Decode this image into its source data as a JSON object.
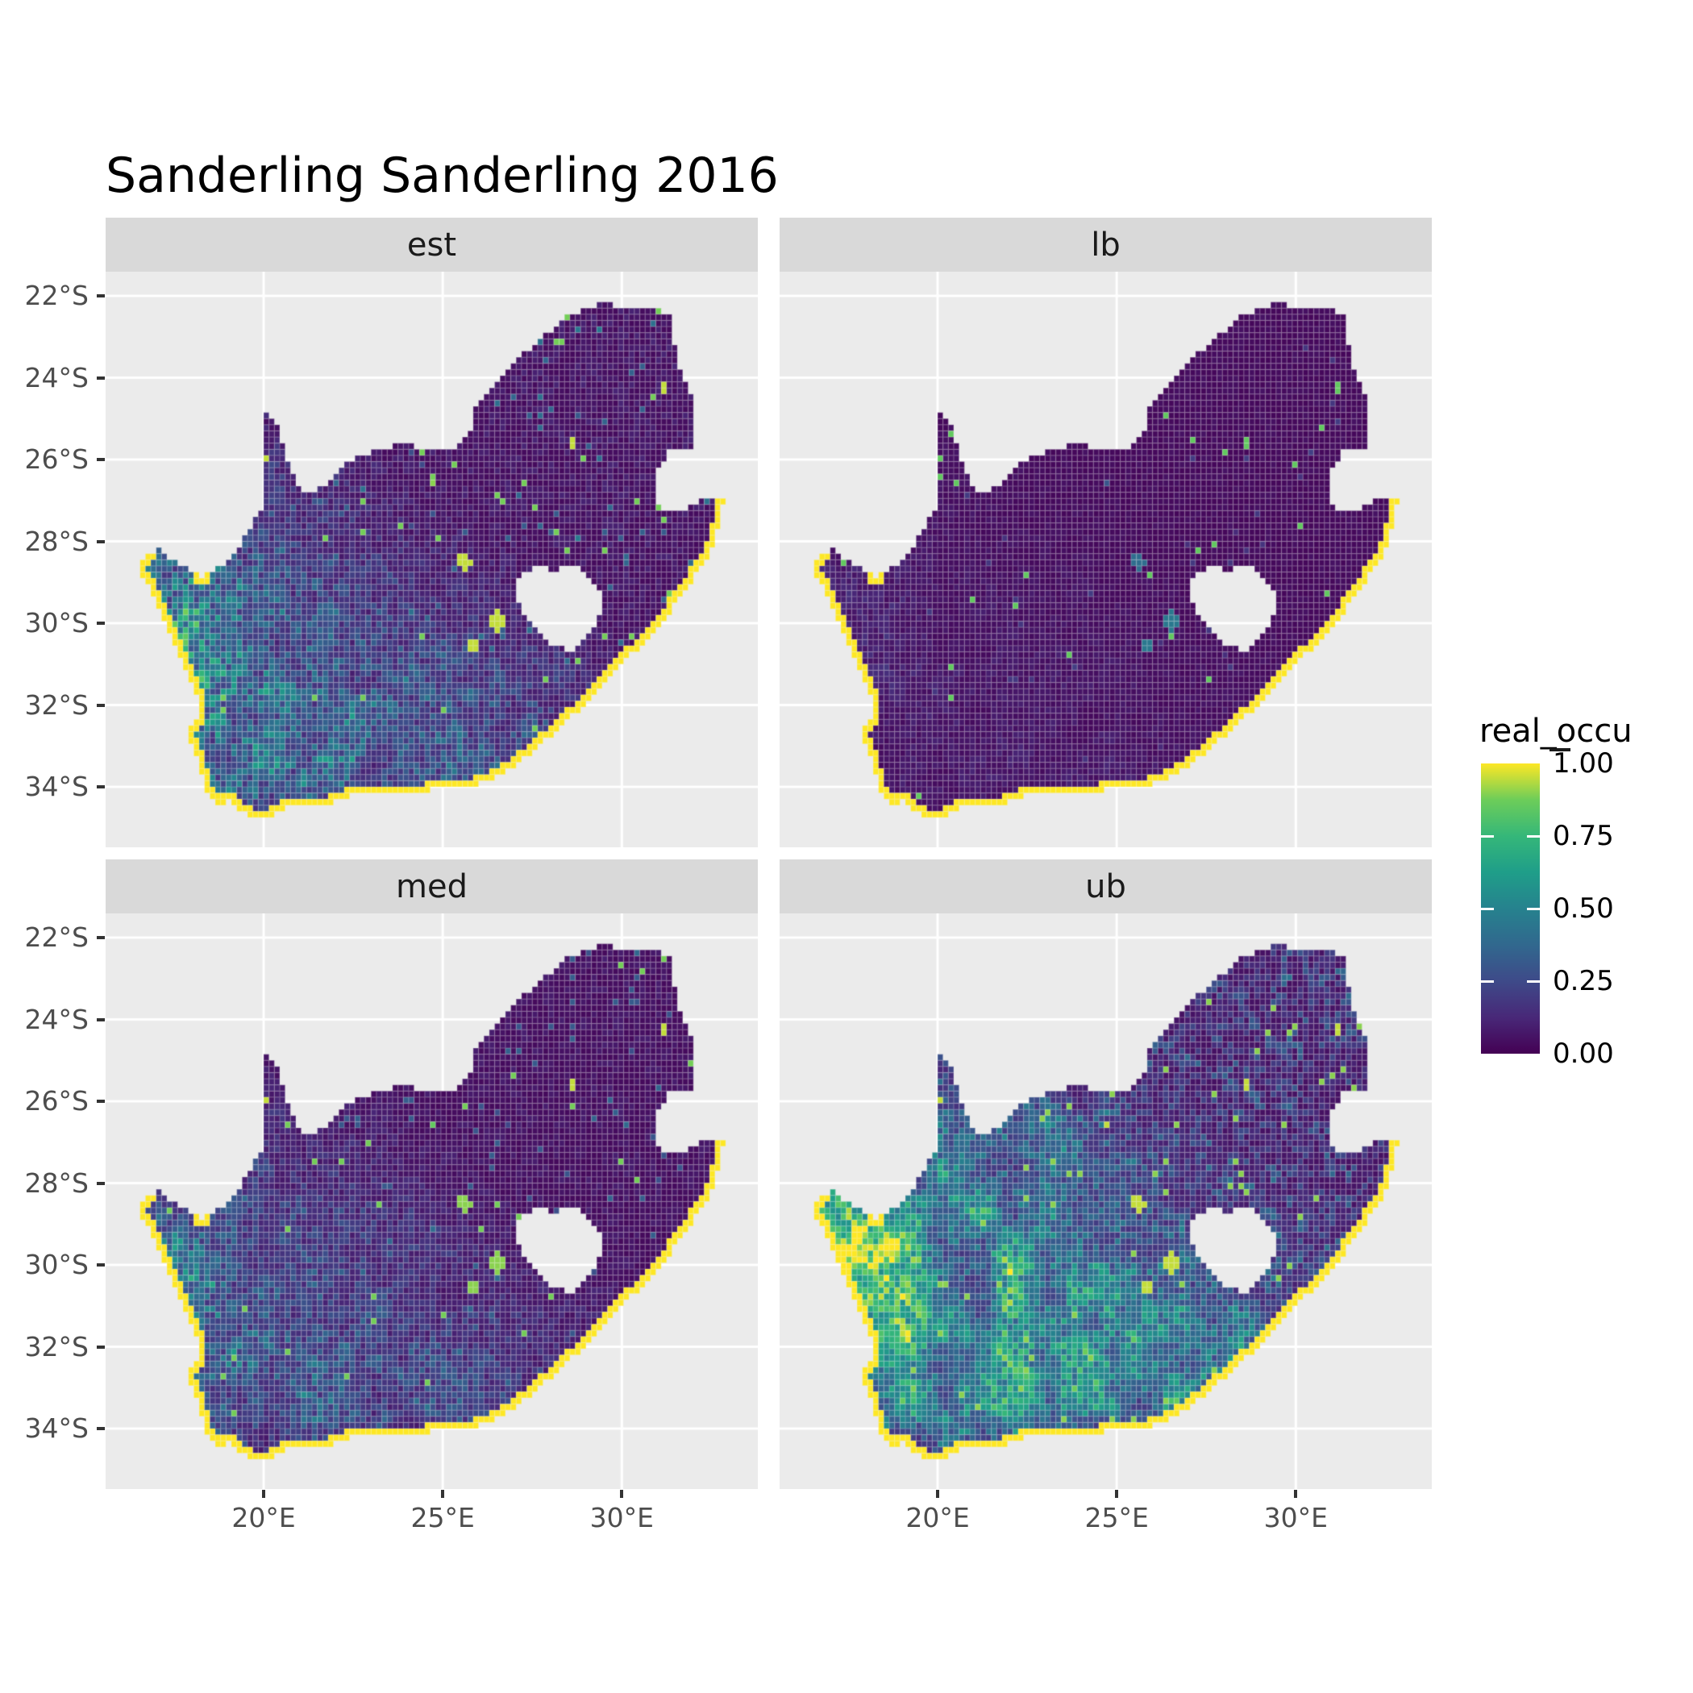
{
  "title": "Sanderling Sanderling 2016",
  "facets": [
    {
      "id": "est",
      "label": "est",
      "summary": "moderate occupancy (0.2-0.6) mottled over southwestern South Africa, near zero in the northeast, occupancy 1 along the coastline"
    },
    {
      "id": "lb",
      "label": "lb",
      "summary": "lower bound: near zero everywhere except coastline cells at 1 and a few isolated hotspots"
    },
    {
      "id": "med",
      "label": "med",
      "summary": "median: low occupancy with sparse teal speckle in the southwest, near zero northeast, coastline 1"
    },
    {
      "id": "ub",
      "label": "ub",
      "summary": "upper bound: high occupancy (0.5-1.0) across the southwest and west coast, low in the northeast, coastline 1"
    }
  ],
  "axes": {
    "y_tick_labels": [
      "22°S",
      "24°S",
      "26°S",
      "28°S",
      "30°S",
      "32°S",
      "34°S"
    ],
    "y_tick_values": [
      -22,
      -24,
      -26,
      -28,
      -30,
      -32,
      -34
    ],
    "x_tick_labels": [
      "20°E",
      "25°E",
      "30°E"
    ],
    "x_tick_values": [
      20,
      25,
      30
    ]
  },
  "legend": {
    "title": "real_occu",
    "labels": [
      "1.00",
      "0.75",
      "0.50",
      "0.25",
      "0.00"
    ],
    "breaks": [
      1.0,
      0.75,
      0.5,
      0.25,
      0.0
    ]
  },
  "colors": {
    "background": "#ffffff",
    "panel_bg": "#ebebeb",
    "strip_bg": "#d9d9d9",
    "grid": "#ffffff",
    "tick": "#333333",
    "axis_text": "#4d4d4d",
    "strip_text": "#1a1a1a",
    "title_text": "#000000",
    "viridis": [
      [
        0,
        "#440154"
      ],
      [
        0.125,
        "#482878"
      ],
      [
        0.25,
        "#3E4A89"
      ],
      [
        0.375,
        "#31688E"
      ],
      [
        0.5,
        "#26828E"
      ],
      [
        0.625,
        "#1F9E89"
      ],
      [
        0.75,
        "#35B779"
      ],
      [
        0.875,
        "#6DCD59"
      ],
      [
        1,
        "#FDE725"
      ]
    ]
  },
  "chart_data": {
    "type": "heatmap",
    "subtype": "faceted raster occupancy map",
    "region": "South Africa",
    "variable": "real_occu",
    "title": "Sanderling Sanderling 2016",
    "facet_labels": [
      "est",
      "lb",
      "med",
      "ub"
    ],
    "color_scale": {
      "name": "viridis",
      "limits": [
        0,
        1
      ],
      "breaks": [
        0,
        0.25,
        0.5,
        0.75,
        1
      ]
    },
    "lon_range": [
      15.6,
      33.8
    ],
    "lat_range": [
      -35.5,
      -21.4
    ],
    "grid": {
      "lon0": 16.4,
      "lat0": -22.0,
      "step": 0.15,
      "ncols": 111,
      "nrows": 87
    },
    "map": {
      "boundary": [
        [
          16.45,
          -28.6
        ],
        [
          17.05,
          -28.15
        ],
        [
          17.6,
          -28.55
        ],
        [
          18.3,
          -28.87
        ],
        [
          19.0,
          -28.5
        ],
        [
          19.4,
          -28.0
        ],
        [
          19.7,
          -27.6
        ],
        [
          19.99,
          -27.1
        ],
        [
          19.99,
          -24.76
        ],
        [
          20.35,
          -25.05
        ],
        [
          20.62,
          -25.8
        ],
        [
          20.72,
          -26.25
        ],
        [
          21.1,
          -26.87
        ],
        [
          21.7,
          -26.67
        ],
        [
          22.2,
          -26.15
        ],
        [
          22.9,
          -25.85
        ],
        [
          23.9,
          -25.62
        ],
        [
          24.75,
          -25.8
        ],
        [
          25.4,
          -25.72
        ],
        [
          25.75,
          -25.4
        ],
        [
          25.9,
          -24.75
        ],
        [
          26.4,
          -24.3
        ],
        [
          26.9,
          -23.65
        ],
        [
          27.6,
          -23.22
        ],
        [
          28.3,
          -22.57
        ],
        [
          29.35,
          -22.18
        ],
        [
          30.3,
          -22.3
        ],
        [
          31.3,
          -22.4
        ],
        [
          31.55,
          -23.6
        ],
        [
          31.95,
          -24.4
        ],
        [
          32.05,
          -25.1
        ],
        [
          32.02,
          -25.68
        ],
        [
          31.4,
          -25.73
        ],
        [
          30.97,
          -26.25
        ],
        [
          30.87,
          -26.8
        ],
        [
          31.1,
          -27.2
        ],
        [
          31.65,
          -27.33
        ],
        [
          32.12,
          -27.05
        ],
        [
          32.89,
          -26.86
        ],
        [
          32.55,
          -28.15
        ],
        [
          32.0,
          -28.9
        ],
        [
          31.25,
          -29.85
        ],
        [
          30.65,
          -30.45
        ],
        [
          30.0,
          -31.0
        ],
        [
          29.2,
          -31.85
        ],
        [
          28.3,
          -32.5
        ],
        [
          27.5,
          -33.2
        ],
        [
          26.45,
          -33.75
        ],
        [
          25.65,
          -34.05
        ],
        [
          25.0,
          -33.98
        ],
        [
          24.2,
          -34.2
        ],
        [
          23.35,
          -34.1
        ],
        [
          22.55,
          -34.2
        ],
        [
          21.8,
          -34.42
        ],
        [
          20.8,
          -34.45
        ],
        [
          20.0,
          -34.82
        ],
        [
          19.35,
          -34.62
        ],
        [
          19.1,
          -34.35
        ],
        [
          18.82,
          -34.42
        ],
        [
          18.45,
          -34.3
        ],
        [
          18.33,
          -33.9
        ],
        [
          18.05,
          -33.1
        ],
        [
          17.85,
          -32.75
        ],
        [
          18.25,
          -32.1
        ],
        [
          18.08,
          -31.6
        ],
        [
          17.55,
          -30.6
        ],
        [
          17.0,
          -29.5
        ],
        [
          16.75,
          -29.0
        ]
      ],
      "lesotho_hole": [
        [
          27.0,
          -28.9
        ],
        [
          27.55,
          -28.62
        ],
        [
          28.15,
          -28.7
        ],
        [
          28.7,
          -28.6
        ],
        [
          29.15,
          -28.9
        ],
        [
          29.45,
          -29.3
        ],
        [
          29.42,
          -29.75
        ],
        [
          29.2,
          -30.2
        ],
        [
          28.6,
          -30.65
        ],
        [
          28.1,
          -30.57
        ],
        [
          27.75,
          -30.3
        ],
        [
          27.35,
          -29.9
        ],
        [
          27.02,
          -29.3
        ]
      ],
      "land_boxes": [
        {
          "lonMin": 16.8,
          "lonMax": 20.05,
          "latMin": -28.75,
          "latMax": 0
        },
        {
          "lonMin": 20.05,
          "lonMax": 29.6,
          "latMin": -26.95,
          "latMax": 0
        },
        {
          "lonMin": -180,
          "lonMax": 180,
          "latMin": -22.9,
          "latMax": 0
        },
        {
          "lonMin": 31.45,
          "lonMax": 180,
          "latMin": -27.05,
          "latMax": 0
        },
        {
          "lonMin": 30.7,
          "lonMax": 32.35,
          "latMin": -27.45,
          "latMax": -25.55
        }
      ]
    },
    "hotspots": [
      {
        "lon": 20.08,
        "lat": -26.0,
        "r": 0.12,
        "est": 0.95,
        "lb": 0.85,
        "med": 0.95,
        "ub": 0.95
      },
      {
        "lon": 31.15,
        "lat": -24.28,
        "r": 0.12,
        "est": 0.95,
        "lb": 0.85,
        "med": 0.95,
        "ub": 0.95
      },
      {
        "lon": 28.66,
        "lat": -25.6,
        "r": 0.12,
        "est": 0.95,
        "lb": 0.85,
        "med": 0.95,
        "ub": 0.95
      },
      {
        "lon": 25.6,
        "lat": -28.5,
        "r": 0.18,
        "est": 0.95,
        "lb": 0.4,
        "med": 0.9,
        "ub": 0.95
      },
      {
        "lon": 26.55,
        "lat": -29.95,
        "r": 0.25,
        "est": 0.95,
        "lb": 0.45,
        "med": 0.9,
        "ub": 0.95
      },
      {
        "lon": 25.85,
        "lat": -30.55,
        "r": 0.22,
        "est": 0.95,
        "lb": 0.45,
        "med": 0.9,
        "ub": 0.95
      },
      {
        "lon": 24.75,
        "lat": -26.6,
        "r": 0.12,
        "est": 0.9,
        "lb": 0.3,
        "med": 0.85,
        "ub": 0.95
      }
    ],
    "render_params": {
      "est": {
        "mode": "std",
        "base": 0.03,
        "randAmp": 0.09,
        "swT": 0.43,
        "swSpan": 0.33,
        "swBase": 0.1,
        "swPatch": 0.62,
        "wcAmp": 0.3,
        "dotHi": 0.993,
        "dotVal": 0.88,
        "spLo": 0.972,
        "spBase": 0.22,
        "spPatch": 0.3,
        "southD": [
          33.8,
          1.2,
          0.8
        ],
        "seed": 11
      },
      "lb": {
        "mode": "std",
        "base": 0.02,
        "randAmp": 0.035,
        "swT": 0.43,
        "swSpan": 0.33,
        "swBase": 0.0,
        "swPatch": 0.1,
        "wcAmp": 0.06,
        "dotHi": 0.9968,
        "dotVal": 0.85,
        "spLo": 0.988,
        "spBase": 0.1,
        "spPatch": 0.15,
        "southD": [
          33.8,
          1.2,
          0.8
        ],
        "seed": 23
      },
      "med": {
        "mode": "std",
        "base": 0.028,
        "randAmp": 0.07,
        "swT": 0.43,
        "swSpan": 0.33,
        "swBase": 0.07,
        "swPatch": 0.5,
        "wcAmp": 0.22,
        "dotHi": 0.994,
        "dotVal": 0.88,
        "spLo": 0.978,
        "spBase": 0.2,
        "spPatch": 0.25,
        "southD": [
          33.8,
          1.2,
          0.8
        ],
        "seed": 37
      },
      "ub": {
        "mode": "ub",
        "base": 0.05,
        "neAmp": 0.42,
        "swT": 0.33,
        "swSpan": 0.4,
        "swBase": 0.35,
        "swPatch": 0.75,
        "wcAmp": 0.5,
        "dotHi": 0.99,
        "dotVal": 0.9,
        "southD": [
          33.5,
          1.3,
          0.95
        ],
        "seed": 53
      }
    }
  }
}
